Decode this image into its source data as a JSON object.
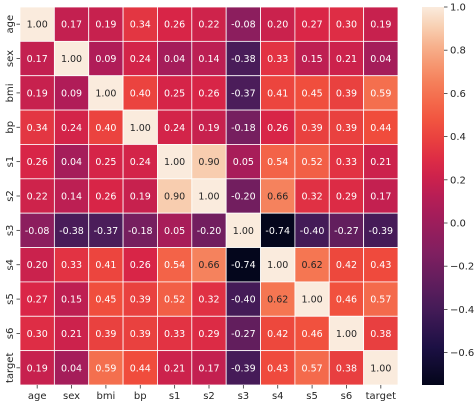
{
  "chart_data": {
    "type": "heatmap",
    "title": "",
    "xlabel": "",
    "ylabel": "",
    "x_categories": [
      "age",
      "sex",
      "bmi",
      "bp",
      "s1",
      "s2",
      "s3",
      "s4",
      "s5",
      "s6",
      "target"
    ],
    "y_categories": [
      "age",
      "sex",
      "bmi",
      "bp",
      "s1",
      "s2",
      "s3",
      "s4",
      "s5",
      "s6",
      "target"
    ],
    "values": [
      [
        1.0,
        0.17,
        0.19,
        0.34,
        0.26,
        0.22,
        -0.08,
        0.2,
        0.27,
        0.3,
        0.19
      ],
      [
        0.17,
        1.0,
        0.09,
        0.24,
        0.04,
        0.14,
        -0.38,
        0.33,
        0.15,
        0.21,
        0.04
      ],
      [
        0.19,
        0.09,
        1.0,
        0.4,
        0.25,
        0.26,
        -0.37,
        0.41,
        0.45,
        0.39,
        0.59
      ],
      [
        0.34,
        0.24,
        0.4,
        1.0,
        0.24,
        0.19,
        -0.18,
        0.26,
        0.39,
        0.39,
        0.44
      ],
      [
        0.26,
        0.04,
        0.25,
        0.24,
        1.0,
        0.9,
        0.05,
        0.54,
        0.52,
        0.33,
        0.21
      ],
      [
        0.22,
        0.14,
        0.26,
        0.19,
        0.9,
        1.0,
        -0.2,
        0.66,
        0.32,
        0.29,
        0.17
      ],
      [
        -0.08,
        -0.38,
        -0.37,
        -0.18,
        0.05,
        -0.2,
        1.0,
        -0.74,
        -0.4,
        -0.27,
        -0.39
      ],
      [
        0.2,
        0.33,
        0.41,
        0.26,
        0.54,
        0.66,
        -0.74,
        1.0,
        0.62,
        0.42,
        0.43
      ],
      [
        0.27,
        0.15,
        0.45,
        0.39,
        0.52,
        0.32,
        -0.4,
        0.62,
        1.0,
        0.46,
        0.57
      ],
      [
        0.3,
        0.21,
        0.39,
        0.39,
        0.33,
        0.29,
        -0.27,
        0.42,
        0.46,
        1.0,
        0.38
      ],
      [
        0.19,
        0.04,
        0.59,
        0.44,
        0.21,
        0.17,
        -0.39,
        0.43,
        0.57,
        0.38,
        1.0
      ]
    ],
    "annotation_format": "0.00",
    "colorbar": {
      "min": -0.75,
      "max": 1.0,
      "ticks": [
        -0.6,
        -0.4,
        -0.2,
        0.0,
        0.2,
        0.4,
        0.6,
        0.8,
        1.0
      ],
      "tick_labels": [
        "−0.6",
        "−0.4",
        "−0.2",
        "0.0",
        "0.2",
        "0.4",
        "0.6",
        "0.8",
        "1.0"
      ],
      "colormap": "rocket"
    },
    "grid": false,
    "legend": "colorbar-right"
  }
}
